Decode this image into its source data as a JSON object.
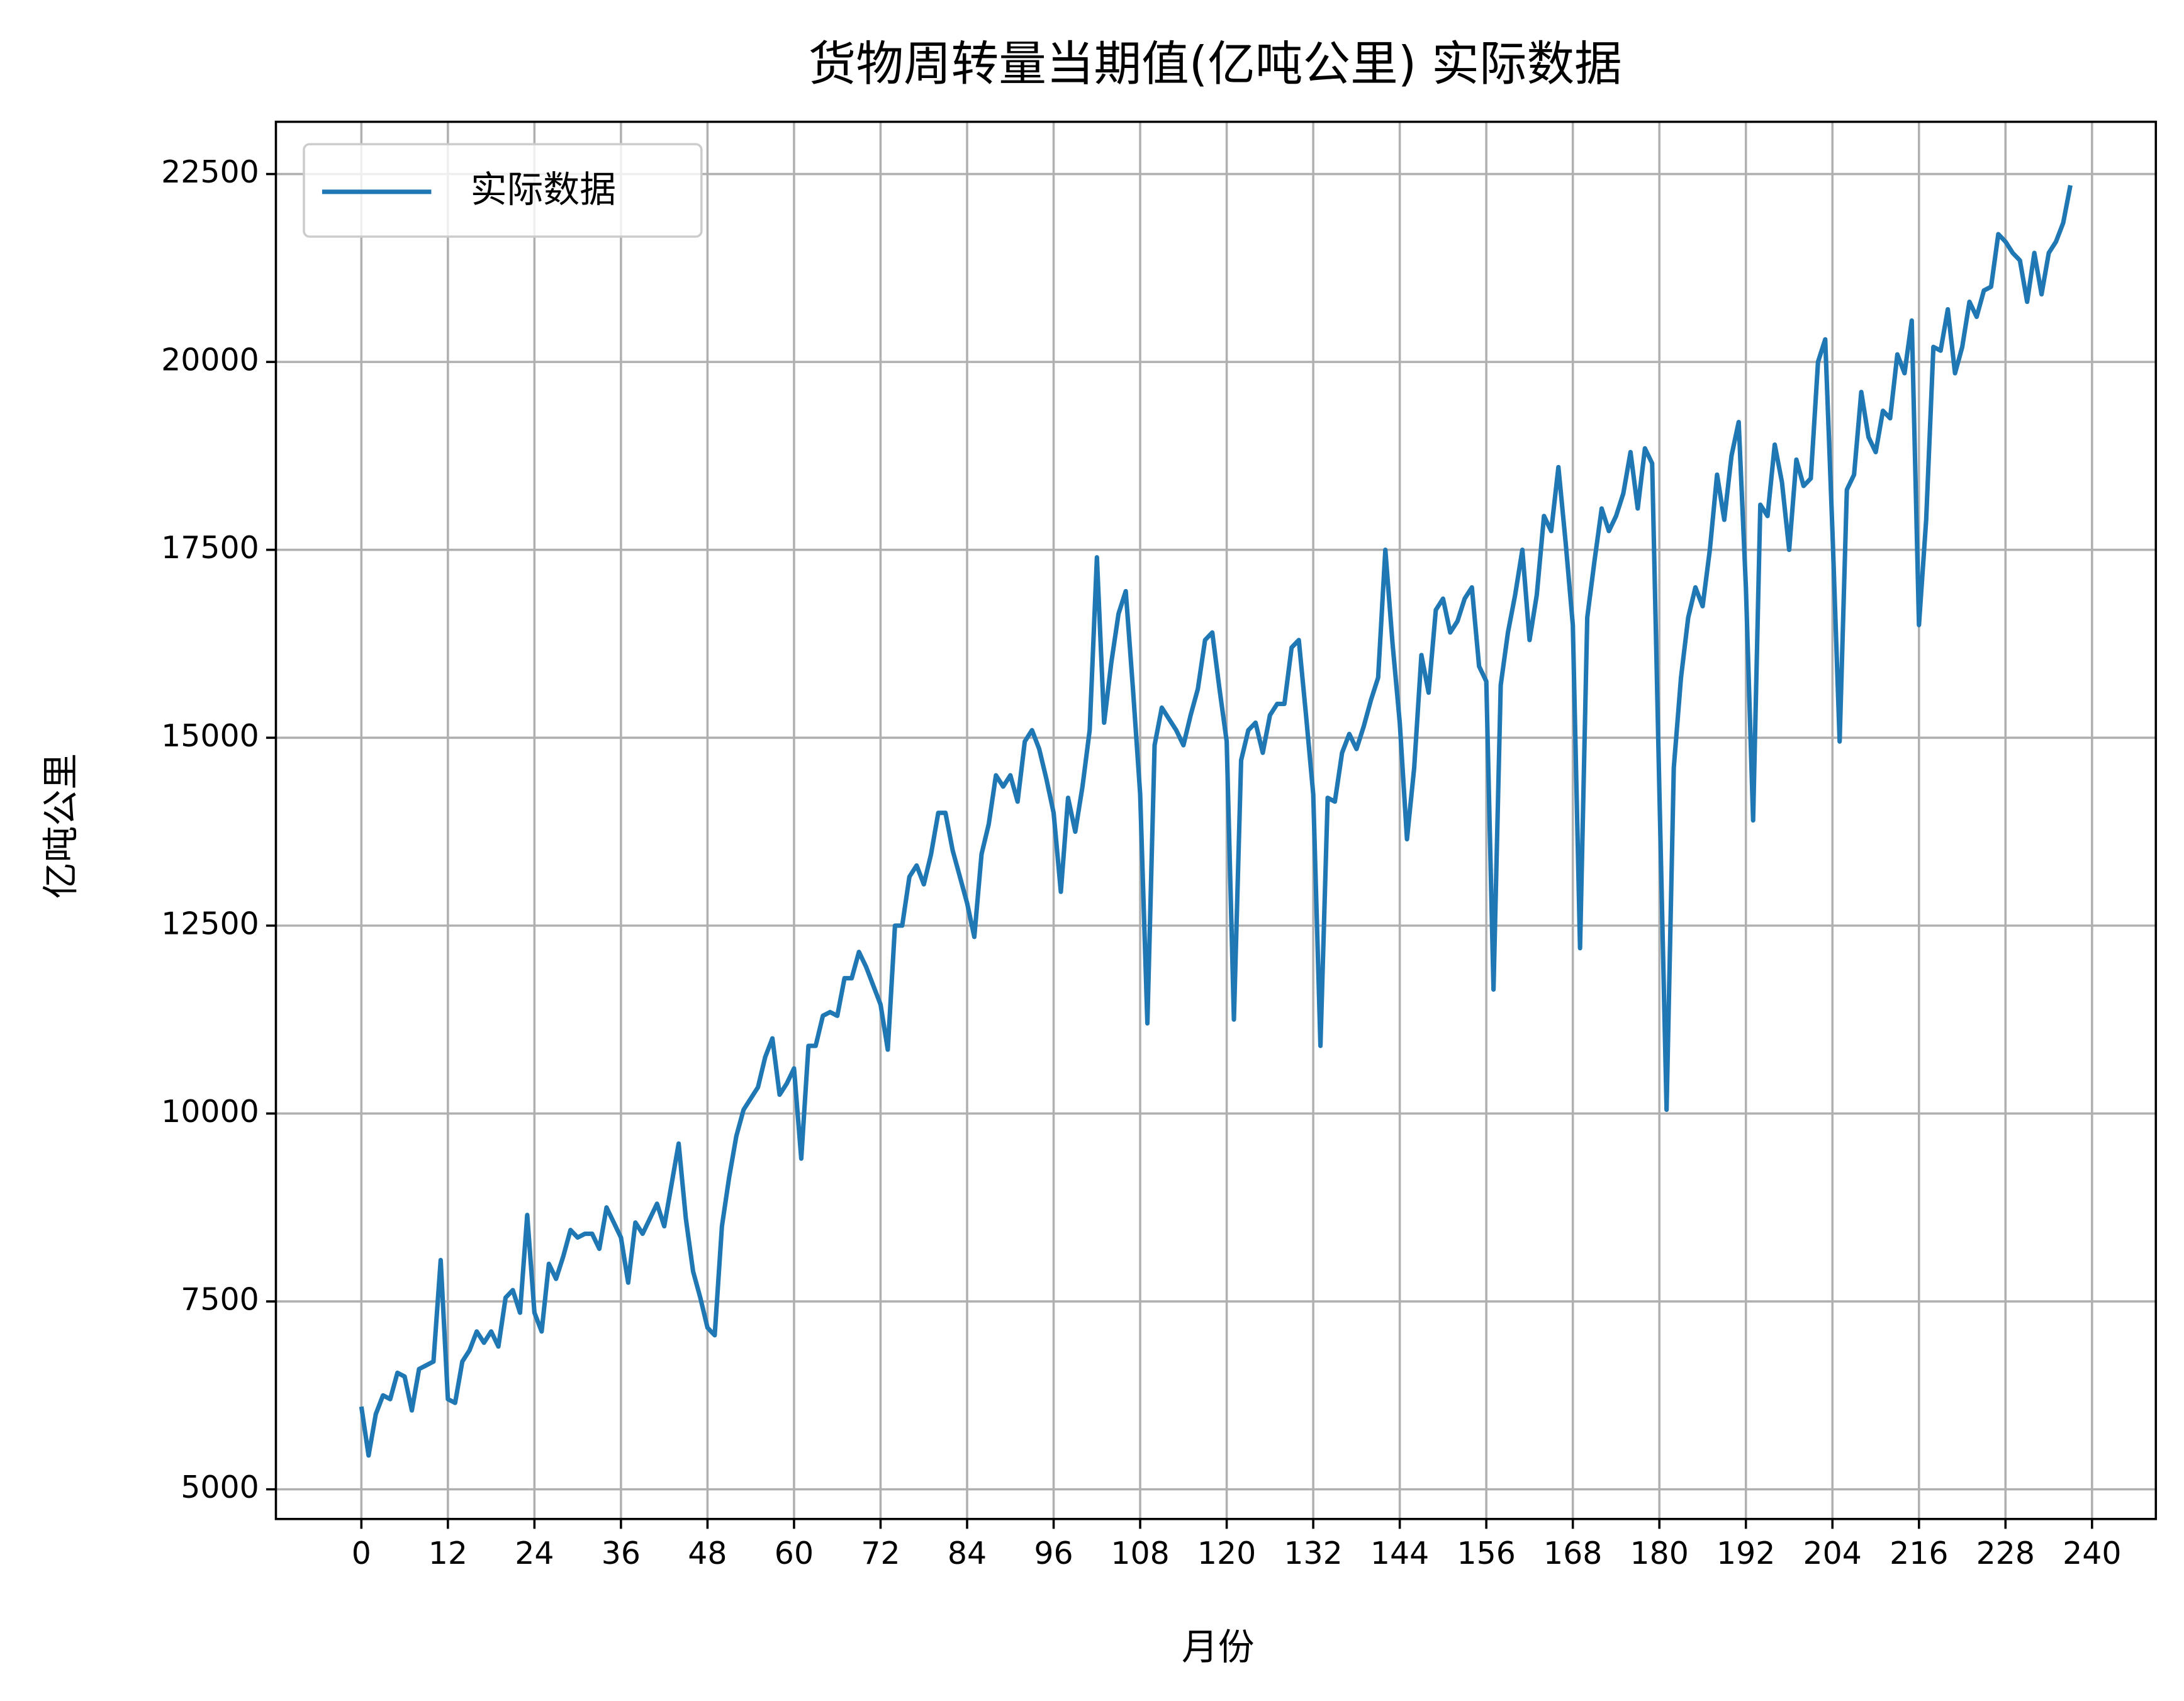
{
  "chart_data": {
    "type": "line",
    "title": "货物周转量当期值(亿吨公里) 实际数据",
    "x_label": "月份",
    "y_label": "亿吨公里",
    "x": [
      0,
      1,
      2,
      3,
      4,
      5,
      6,
      7,
      8,
      9,
      10,
      11,
      12,
      13,
      14,
      15,
      16,
      17,
      18,
      19,
      20,
      21,
      22,
      23,
      24,
      25,
      26,
      27,
      28,
      29,
      30,
      31,
      32,
      33,
      34,
      35,
      36,
      37,
      38,
      39,
      40,
      41,
      42,
      43,
      44,
      45,
      46,
      47,
      48,
      49,
      50,
      51,
      52,
      53,
      54,
      55,
      56,
      57,
      58,
      59,
      60,
      61,
      62,
      63,
      64,
      65,
      66,
      67,
      68,
      69,
      70,
      71,
      72,
      73,
      74,
      75,
      76,
      77,
      78,
      79,
      80,
      81,
      82,
      83,
      84,
      85,
      86,
      87,
      88,
      89,
      90,
      91,
      92,
      93,
      94,
      95,
      96,
      97,
      98,
      99,
      100,
      101,
      102,
      103,
      104,
      105,
      106,
      107,
      108,
      109,
      110,
      111,
      112,
      113,
      114,
      115,
      116,
      117,
      118,
      119,
      120,
      121,
      122,
      123,
      124,
      125,
      126,
      127,
      128,
      129,
      130,
      131,
      132,
      133,
      134,
      135,
      136,
      137,
      138,
      139,
      140,
      141,
      142,
      143,
      144,
      145,
      146,
      147,
      148,
      149,
      150,
      151,
      152,
      153,
      154,
      155,
      156,
      157,
      158,
      159,
      160,
      161,
      162,
      163,
      164,
      165,
      166,
      167,
      168,
      169,
      170,
      171,
      172,
      173,
      174,
      175,
      176,
      177,
      178,
      179,
      180,
      181,
      182,
      183,
      184,
      185,
      186,
      187,
      188,
      189,
      190,
      191,
      192,
      193,
      194,
      195,
      196,
      197,
      198,
      199,
      200,
      201,
      202,
      203,
      204,
      205,
      206,
      207,
      208,
      209,
      210,
      211,
      212,
      213,
      214,
      215,
      216,
      217,
      218,
      219,
      220,
      221,
      222,
      223,
      224,
      225,
      226,
      227,
      228,
      229,
      230,
      231,
      232,
      233,
      234,
      235,
      236,
      237
    ],
    "series": [
      {
        "name": "实际数据",
        "color": "#1f77b4",
        "values": [
          6100,
          5450,
          6000,
          6250,
          6200,
          6550,
          6500,
          6050,
          6600,
          6650,
          6700,
          8050,
          6200,
          6150,
          6700,
          6850,
          7100,
          6950,
          7100,
          6900,
          7550,
          7650,
          7350,
          8650,
          7350,
          7100,
          8000,
          7800,
          8100,
          8450,
          8350,
          8400,
          8400,
          8200,
          8750,
          8550,
          8350,
          7750,
          8550,
          8400,
          8600,
          8800,
          8500,
          9050,
          9600,
          8600,
          7900,
          7550,
          7150,
          7050,
          8500,
          9150,
          9700,
          10050,
          10200,
          10350,
          10750,
          11000,
          10250,
          10400,
          10600,
          9400,
          10900,
          10900,
          11300,
          11350,
          11300,
          11800,
          11800,
          12150,
          11950,
          11700,
          11450,
          10850,
          12500,
          12500,
          13150,
          13300,
          13050,
          13450,
          14000,
          14000,
          13500,
          13150,
          12800,
          12350,
          13450,
          13850,
          14500,
          14350,
          14500,
          14150,
          14950,
          15100,
          14850,
          14450,
          14000,
          12950,
          14200,
          13750,
          14350,
          15100,
          17400,
          15200,
          16000,
          16650,
          16950,
          15650,
          14250,
          11200,
          14900,
          15400,
          15250,
          15100,
          14900,
          15300,
          15650,
          16300,
          16400,
          15650,
          14950,
          11250,
          14700,
          15100,
          15200,
          14800,
          15300,
          15450,
          15450,
          16200,
          16300,
          15300,
          14250,
          10900,
          14200,
          14150,
          14800,
          15050,
          14850,
          15150,
          15500,
          15800,
          17500,
          16250,
          15200,
          13650,
          14600,
          16100,
          15600,
          16700,
          16850,
          16400,
          16550,
          16850,
          17000,
          15950,
          15750,
          11650,
          15700,
          16400,
          16900,
          17500,
          16300,
          16900,
          17950,
          17750,
          18600,
          17600,
          16500,
          12200,
          16600,
          17350,
          18050,
          17750,
          17950,
          18250,
          18800,
          18050,
          18850,
          18650,
          14300,
          10050,
          14600,
          15800,
          16600,
          17000,
          16750,
          17500,
          18500,
          17900,
          18750,
          19200,
          17000,
          13900,
          18100,
          17950,
          18900,
          18400,
          17500,
          18700,
          18350,
          18450,
          20000,
          20300,
          17750,
          14950,
          18300,
          18500,
          19600,
          19000,
          18800,
          19350,
          19250,
          20100,
          19850,
          20550,
          16500,
          17900,
          20200,
          20150,
          20700,
          19850,
          20200,
          20800,
          20600,
          20950,
          21000,
          21700,
          21600,
          21450,
          21350,
          20800,
          21450,
          20900,
          21450,
          21600,
          21850,
          22350
        ]
      }
    ],
    "xlim": [
      -11.85,
      248.85
    ],
    "ylim": [
      4605,
      23195
    ],
    "xticks": [
      0,
      12,
      24,
      36,
      48,
      60,
      72,
      84,
      96,
      108,
      120,
      132,
      144,
      156,
      168,
      180,
      192,
      204,
      216,
      228,
      240
    ],
    "yticks": [
      5000,
      7500,
      10000,
      12500,
      15000,
      17500,
      20000,
      22500
    ],
    "grid": true,
    "legend": "upper left"
  }
}
